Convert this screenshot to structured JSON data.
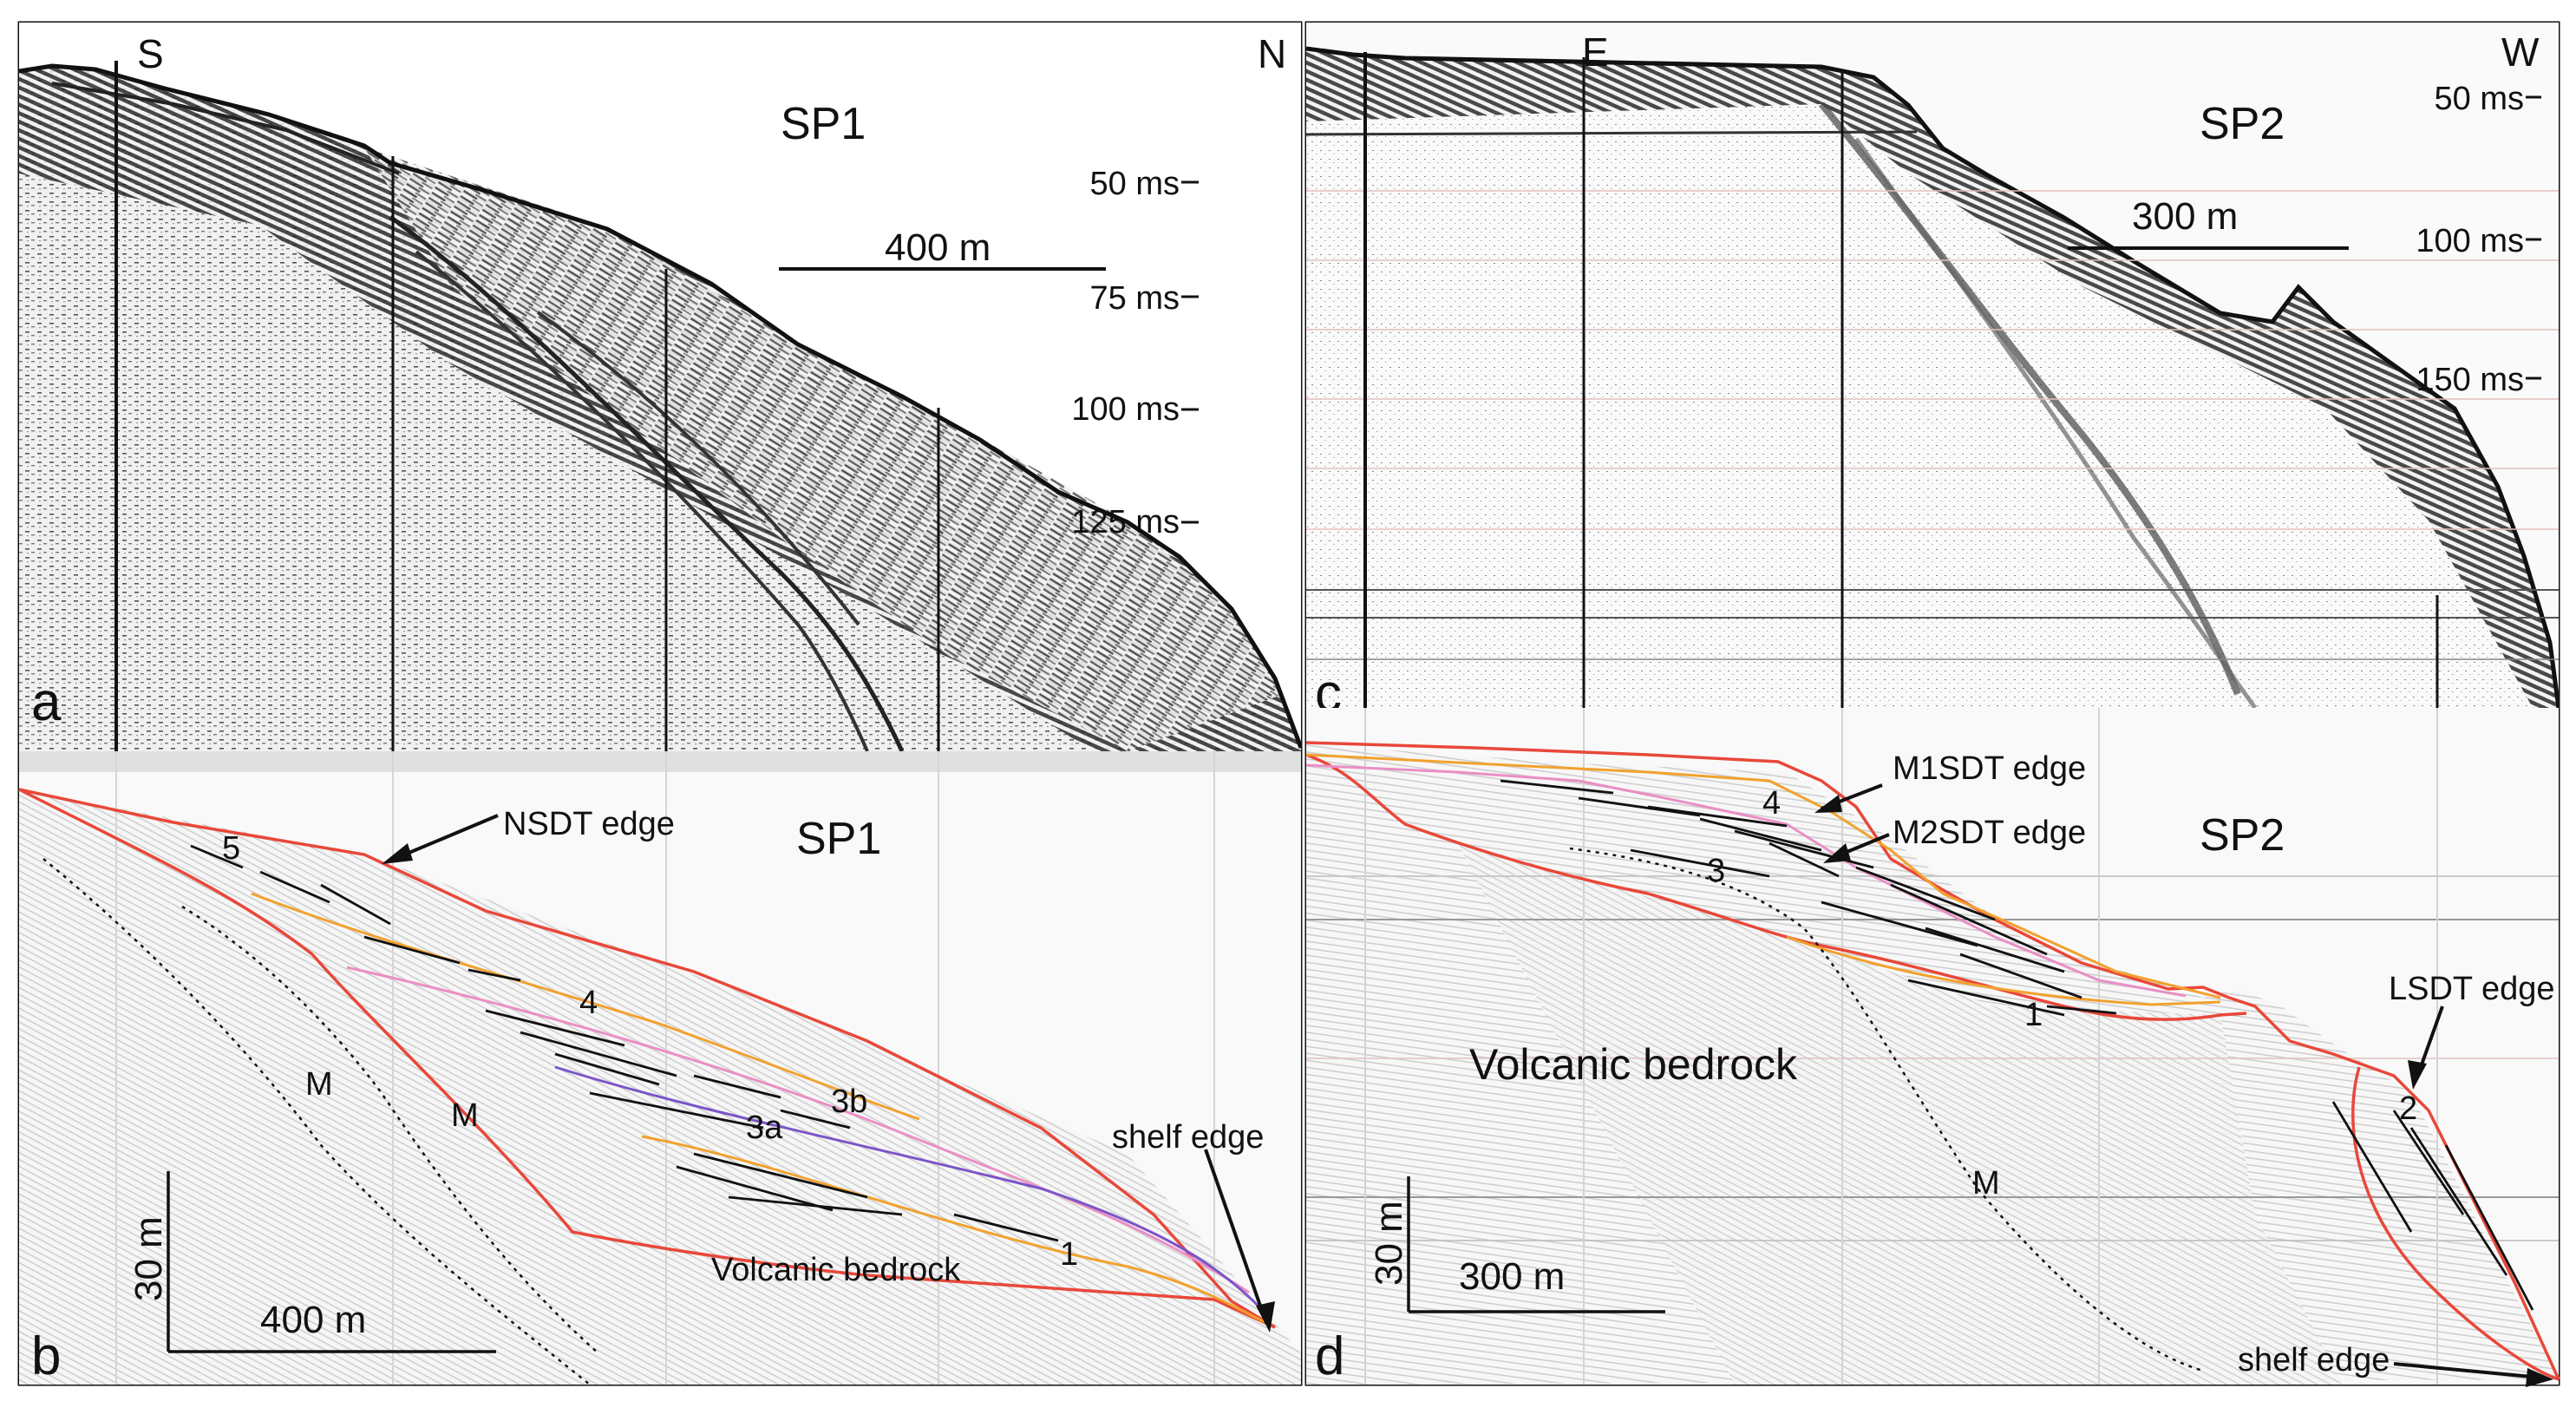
{
  "colors": {
    "boundary": "#e8483a",
    "orange": "#f2a12e",
    "pink": "#ea8fc4",
    "purple": "#7b55c8",
    "reflector": "#111111",
    "seismic_dark": "#1a1a1a",
    "seismic_light": "#f4f4f4"
  },
  "panels": {
    "a": {
      "letter": "a",
      "left": "S",
      "right": "N",
      "title": "SP1",
      "scale": "400 m",
      "ticks": [
        "50 ms",
        "75 ms",
        "100 ms",
        "125 ms"
      ]
    },
    "b": {
      "letter": "b",
      "title": "SP1",
      "labels": {
        "nsdt": "NSDT edge",
        "shelf": "shelf edge",
        "rock": "Volcanic bedrock",
        "u5": "5",
        "u4": "4",
        "u3a": "3a",
        "u3b": "3b",
        "u1": "1",
        "m1": "M",
        "m2": "M"
      },
      "scale_v": "30 m",
      "scale_h": "400 m"
    },
    "c": {
      "letter": "c",
      "left": "E",
      "right": "W",
      "title": "SP2",
      "scale": "300 m",
      "ticks": [
        "50 ms",
        "100 ms",
        "150 ms"
      ]
    },
    "d": {
      "letter": "d",
      "title": "SP2",
      "labels": {
        "m1sdt": "M1SDT edge",
        "m2sdt": "M2SDT edge",
        "lsdt": "LSDT edge",
        "shelf": "shelf edge",
        "rock": "Volcanic bedrock",
        "u4": "4",
        "u3": "3",
        "u1": "1",
        "u2": "2",
        "m": "M"
      },
      "scale_v": "30 m",
      "scale_h": "300 m"
    }
  }
}
